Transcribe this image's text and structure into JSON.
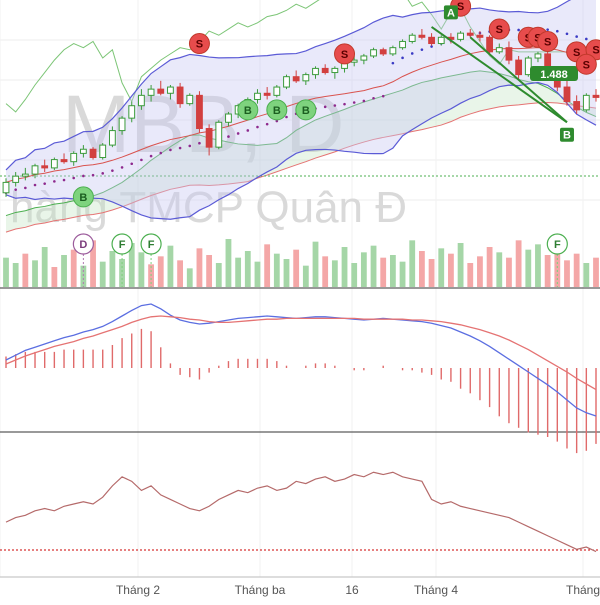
{
  "chart_data": {
    "type": "candlestick",
    "watermark": {
      "ticker": "MBB, D",
      "company": "hàng TMCP Quân Đ"
    },
    "x_tick_labels": [
      "Tháng 2",
      "Tháng ba",
      "16",
      "Tháng 4",
      "Tháng"
    ],
    "last_price_label": "1.488",
    "signals": [
      {
        "label": "B",
        "kind": "buy"
      },
      {
        "label": "B",
        "kind": "buy"
      },
      {
        "label": "B",
        "kind": "buy"
      },
      {
        "label": "B",
        "kind": "buy"
      },
      {
        "label": "S",
        "kind": "sell"
      },
      {
        "label": "S",
        "kind": "sell"
      },
      {
        "label": "S",
        "kind": "sell"
      },
      {
        "label": "S",
        "kind": "sell"
      },
      {
        "label": "S",
        "kind": "sell"
      },
      {
        "label": "S",
        "kind": "sell"
      },
      {
        "label": "S",
        "kind": "sell"
      },
      {
        "label": "S",
        "kind": "sell"
      },
      {
        "label": "S",
        "kind": "sell"
      },
      {
        "label": "S",
        "kind": "sell"
      }
    ],
    "pattern_markers": [
      {
        "label": "A"
      },
      {
        "label": "B"
      }
    ],
    "events": [
      {
        "label": "D"
      },
      {
        "label": "F"
      },
      {
        "label": "F"
      },
      {
        "label": "F"
      }
    ],
    "candles": [
      [
        30.2,
        30.9,
        30.0,
        30.7
      ],
      [
        30.7,
        31.2,
        30.5,
        31.0
      ],
      [
        31.0,
        31.4,
        30.8,
        31.1
      ],
      [
        31.1,
        31.6,
        30.9,
        31.5
      ],
      [
        31.5,
        31.8,
        31.2,
        31.4
      ],
      [
        31.4,
        31.9,
        31.3,
        31.8
      ],
      [
        31.8,
        32.1,
        31.6,
        31.7
      ],
      [
        31.7,
        32.2,
        31.5,
        32.1
      ],
      [
        32.1,
        32.5,
        31.9,
        32.3
      ],
      [
        32.3,
        32.4,
        31.8,
        31.9
      ],
      [
        31.9,
        32.6,
        31.8,
        32.5
      ],
      [
        32.5,
        33.4,
        32.4,
        33.2
      ],
      [
        33.2,
        33.9,
        33.0,
        33.8
      ],
      [
        33.8,
        34.6,
        33.6,
        34.4
      ],
      [
        34.4,
        35.2,
        34.2,
        34.9
      ],
      [
        34.9,
        35.4,
        34.6,
        35.2
      ],
      [
        35.2,
        35.6,
        34.9,
        35.0
      ],
      [
        35.0,
        35.4,
        34.7,
        35.3
      ],
      [
        35.3,
        35.5,
        34.3,
        34.5
      ],
      [
        34.5,
        35.0,
        34.4,
        34.9
      ],
      [
        34.9,
        35.1,
        33.1,
        33.3
      ],
      [
        33.3,
        33.5,
        32.0,
        32.4
      ],
      [
        32.4,
        33.7,
        32.3,
        33.6
      ],
      [
        33.6,
        34.1,
        33.4,
        34.0
      ],
      [
        34.0,
        34.5,
        33.8,
        34.4
      ],
      [
        34.4,
        34.8,
        34.2,
        34.7
      ],
      [
        34.7,
        35.2,
        34.5,
        35.0
      ],
      [
        35.0,
        35.3,
        34.7,
        34.9
      ],
      [
        34.9,
        35.4,
        34.8,
        35.3
      ],
      [
        35.3,
        35.9,
        35.2,
        35.8
      ],
      [
        35.8,
        36.1,
        35.5,
        35.6
      ],
      [
        35.6,
        36.0,
        35.4,
        35.9
      ],
      [
        35.9,
        36.3,
        35.7,
        36.2
      ],
      [
        36.2,
        36.4,
        35.9,
        36.0
      ],
      [
        36.0,
        36.3,
        35.7,
        36.2
      ],
      [
        36.2,
        36.6,
        36.0,
        36.5
      ],
      [
        36.5,
        36.8,
        36.3,
        36.6
      ],
      [
        36.6,
        36.9,
        36.4,
        36.8
      ],
      [
        36.8,
        37.2,
        36.7,
        37.1
      ],
      [
        37.1,
        37.2,
        36.8,
        36.9
      ],
      [
        36.9,
        37.3,
        36.8,
        37.2
      ],
      [
        37.2,
        37.6,
        37.1,
        37.5
      ],
      [
        37.5,
        37.9,
        37.4,
        37.8
      ],
      [
        37.8,
        38.1,
        37.6,
        37.7
      ],
      [
        37.7,
        37.9,
        37.3,
        37.4
      ],
      [
        37.4,
        37.8,
        37.3,
        37.7
      ],
      [
        37.7,
        37.9,
        37.4,
        37.6
      ],
      [
        37.6,
        38.0,
        37.5,
        37.9
      ],
      [
        37.9,
        38.1,
        37.7,
        37.8
      ],
      [
        37.8,
        38.0,
        37.5,
        37.7
      ],
      [
        37.7,
        37.8,
        36.9,
        37.0
      ],
      [
        37.0,
        37.4,
        36.9,
        37.2
      ],
      [
        37.2,
        37.5,
        36.4,
        36.6
      ],
      [
        36.6,
        36.8,
        35.7,
        35.9
      ],
      [
        35.9,
        36.8,
        35.8,
        36.7
      ],
      [
        36.7,
        37.0,
        36.5,
        36.9
      ],
      [
        36.9,
        37.0,
        35.9,
        36.0
      ],
      [
        36.0,
        36.2,
        35.1,
        35.3
      ],
      [
        35.3,
        35.6,
        34.4,
        34.6
      ],
      [
        34.6,
        34.9,
        34.0,
        34.2
      ],
      [
        34.2,
        35.0,
        34.1,
        34.9
      ],
      [
        34.9,
        35.2,
        34.6,
        34.8
      ]
    ],
    "volume": [
      22,
      18,
      25,
      20,
      30,
      15,
      24,
      28,
      16,
      35,
      19,
      27,
      21,
      33,
      26,
      17,
      23,
      31,
      20,
      14,
      29,
      24,
      18,
      36,
      22,
      27,
      19,
      32,
      25,
      21,
      28,
      16,
      34,
      23,
      20,
      30,
      18,
      26,
      31,
      22,
      24,
      19,
      35,
      27,
      21,
      29,
      25,
      33,
      18,
      23,
      30,
      26,
      22,
      35,
      28,
      32,
      24,
      27,
      20,
      25,
      18,
      22
    ],
    "volume_up": [
      1,
      1,
      0,
      1,
      1,
      0,
      1,
      0,
      1,
      0,
      1,
      1,
      1,
      1,
      1,
      0,
      0,
      1,
      0,
      1,
      0,
      0,
      1,
      1,
      1,
      1,
      1,
      0,
      1,
      1,
      0,
      1,
      1,
      0,
      1,
      1,
      1,
      1,
      1,
      0,
      1,
      1,
      1,
      0,
      0,
      1,
      0,
      1,
      0,
      0,
      0,
      1,
      0,
      0,
      1,
      1,
      0,
      0,
      0,
      0,
      1,
      0
    ],
    "macd": [
      0.1,
      0.16,
      0.22,
      0.26,
      0.3,
      0.34,
      0.38,
      0.41,
      0.45,
      0.48,
      0.52,
      0.58,
      0.65,
      0.72,
      0.78,
      0.8,
      0.74,
      0.66,
      0.6,
      0.57,
      0.55,
      0.56,
      0.58,
      0.6,
      0.62,
      0.63,
      0.64,
      0.65,
      0.64,
      0.63,
      0.62,
      0.63,
      0.64,
      0.64,
      0.63,
      0.62,
      0.61,
      0.6,
      0.61,
      0.62,
      0.61,
      0.6,
      0.59,
      0.58,
      0.56,
      0.53,
      0.5,
      0.45,
      0.4,
      0.34,
      0.27,
      0.19,
      0.11,
      0.03,
      -0.05,
      -0.13,
      -0.21,
      -0.3,
      -0.4,
      -0.5,
      -0.56,
      -0.6
    ],
    "macd_signal": [
      0.05,
      0.1,
      0.15,
      0.19,
      0.23,
      0.27,
      0.3,
      0.33,
      0.37,
      0.4,
      0.44,
      0.48,
      0.52,
      0.57,
      0.61,
      0.64,
      0.65,
      0.64,
      0.63,
      0.61,
      0.6,
      0.58,
      0.57,
      0.57,
      0.58,
      0.59,
      0.6,
      0.61,
      0.61,
      0.62,
      0.62,
      0.62,
      0.62,
      0.62,
      0.62,
      0.62,
      0.62,
      0.61,
      0.61,
      0.61,
      0.61,
      0.61,
      0.6,
      0.6,
      0.59,
      0.58,
      0.56,
      0.54,
      0.51,
      0.48,
      0.44,
      0.4,
      0.35,
      0.29,
      0.23,
      0.16,
      0.09,
      0.02,
      -0.05,
      -0.13,
      -0.2,
      -0.27
    ],
    "rsi": [
      52,
      54,
      55,
      57,
      58,
      57,
      59,
      60,
      61,
      60,
      63,
      68,
      72,
      70,
      66,
      68,
      64,
      62,
      60,
      58,
      57,
      59,
      62,
      64,
      66,
      65,
      67,
      68,
      66,
      67,
      70,
      69,
      71,
      72,
      70,
      71,
      73,
      72,
      74,
      73,
      74,
      72,
      71,
      70,
      62,
      60,
      61,
      59,
      58,
      57,
      56,
      55,
      54,
      52,
      50,
      48,
      46,
      44,
      42,
      40,
      41,
      39
    ],
    "rsi_ylim": [
      30,
      90
    ],
    "price_ylim": [
      28.5,
      39.5
    ],
    "macd_ylim": [
      -0.75,
      0.95
    ]
  }
}
